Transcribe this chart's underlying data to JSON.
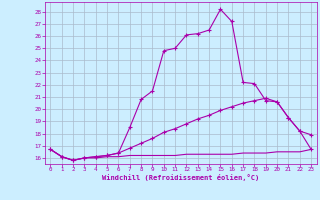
{
  "xlabel": "Windchill (Refroidissement éolien,°C)",
  "bg_color": "#cceeff",
  "grid_color": "#aabbcc",
  "line_color": "#aa00aa",
  "x_ticks": [
    0,
    1,
    2,
    3,
    4,
    5,
    6,
    7,
    8,
    9,
    10,
    11,
    12,
    13,
    14,
    15,
    16,
    17,
    18,
    19,
    20,
    21,
    22,
    23
  ],
  "y_ticks": [
    16,
    17,
    18,
    19,
    20,
    21,
    22,
    23,
    24,
    25,
    26,
    27,
    28
  ],
  "ylim": [
    15.5,
    28.8
  ],
  "xlim": [
    -0.5,
    23.5
  ],
  "series1_x": [
    0,
    1,
    2,
    3,
    4,
    5,
    6,
    7,
    8,
    9,
    10,
    11,
    12,
    13,
    14,
    15,
    16,
    17,
    18,
    19,
    20,
    21,
    22,
    23
  ],
  "series1_y": [
    16.7,
    16.1,
    15.8,
    16.0,
    16.1,
    16.2,
    16.4,
    18.5,
    20.8,
    21.5,
    24.8,
    25.0,
    26.1,
    26.2,
    26.5,
    28.2,
    27.2,
    22.2,
    22.1,
    20.7,
    20.6,
    19.3,
    18.2,
    17.9
  ],
  "series2_x": [
    0,
    1,
    2,
    3,
    4,
    5,
    6,
    7,
    8,
    9,
    10,
    11,
    12,
    13,
    14,
    15,
    16,
    17,
    18,
    19,
    20,
    21,
    22,
    23
  ],
  "series2_y": [
    16.7,
    16.1,
    15.8,
    16.0,
    16.1,
    16.2,
    16.4,
    16.8,
    17.2,
    17.6,
    18.1,
    18.4,
    18.8,
    19.2,
    19.5,
    19.9,
    20.2,
    20.5,
    20.7,
    20.9,
    20.6,
    19.3,
    18.2,
    16.7
  ],
  "series3_x": [
    0,
    1,
    2,
    3,
    4,
    5,
    6,
    7,
    8,
    9,
    10,
    11,
    12,
    13,
    14,
    15,
    16,
    17,
    18,
    19,
    20,
    21,
    22,
    23
  ],
  "series3_y": [
    16.7,
    16.1,
    15.8,
    16.0,
    16.0,
    16.1,
    16.1,
    16.2,
    16.2,
    16.2,
    16.2,
    16.2,
    16.3,
    16.3,
    16.3,
    16.3,
    16.3,
    16.4,
    16.4,
    16.4,
    16.5,
    16.5,
    16.5,
    16.7
  ]
}
